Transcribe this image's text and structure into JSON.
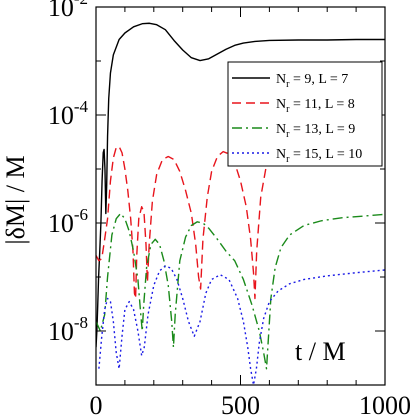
{
  "chart_data": {
    "type": "line",
    "title": "",
    "xlabel": "t / M",
    "ylabel": "|δM| / M",
    "xlim": [
      0,
      1000
    ],
    "ylim": [
      1e-09,
      0.01
    ],
    "yscale": "log",
    "grid": false,
    "legend_position": "top-right",
    "x_ticks": [
      0,
      500,
      1000
    ],
    "x_tick_labels": [
      "0",
      "500",
      "1000"
    ],
    "y_ticks": [
      1e-08,
      1e-06,
      0.0001,
      0.01
    ],
    "y_tick_labels": [
      {
        "mantissa": "10",
        "exponent": "-8"
      },
      {
        "mantissa": "10",
        "exponent": "-6"
      },
      {
        "mantissa": "10",
        "exponent": "-4"
      },
      {
        "mantissa": "10",
        "exponent": "-2"
      }
    ],
    "series": [
      {
        "legend": {
          "base": "N",
          "sub": "r",
          "text": " = 9,  L = 7"
        },
        "color": "#000000",
        "dash": "solid",
        "points": [
          [
            0,
            5e-09
          ],
          [
            3,
            1e-08
          ],
          [
            6,
            3e-08
          ],
          [
            9,
            1e-07
          ],
          [
            13,
            3e-07
          ],
          [
            17,
            1e-06
          ],
          [
            21,
            6e-06
          ],
          [
            25,
            2e-05
          ],
          [
            28,
            2.3e-05
          ],
          [
            31,
            1e-05
          ],
          [
            34,
            1.5e-06
          ],
          [
            37,
            5e-06
          ],
          [
            40,
            4e-05
          ],
          [
            44,
            0.0002
          ],
          [
            50,
            0.0006
          ],
          [
            60,
            0.0013
          ],
          [
            80,
            0.0025
          ],
          [
            100,
            0.0033
          ],
          [
            130,
            0.0043
          ],
          [
            160,
            0.0049
          ],
          [
            185,
            0.005
          ],
          [
            210,
            0.0047
          ],
          [
            240,
            0.0038
          ],
          [
            270,
            0.0024
          ],
          [
            300,
            0.0016
          ],
          [
            330,
            0.00115
          ],
          [
            360,
            0.00102
          ],
          [
            390,
            0.0011
          ],
          [
            420,
            0.00135
          ],
          [
            450,
            0.00165
          ],
          [
            480,
            0.00195
          ],
          [
            510,
            0.00215
          ],
          [
            550,
            0.0023
          ],
          [
            600,
            0.0024
          ],
          [
            700,
            0.00245
          ],
          [
            800,
            0.00245
          ],
          [
            900,
            0.0025
          ],
          [
            1000,
            0.0025
          ]
        ]
      },
      {
        "legend": {
          "base": "N",
          "sub": "r",
          "text": " = 11,  L = 8"
        },
        "color": "#e8141c",
        "dash": "9,5",
        "points": [
          [
            0,
            2.5e-07
          ],
          [
            10,
            2e-07
          ],
          [
            20,
            2.2e-07
          ],
          [
            30,
            5e-07
          ],
          [
            40,
            1.2e-06
          ],
          [
            50,
            6e-06
          ],
          [
            60,
            1.6e-05
          ],
          [
            70,
            2.5e-05
          ],
          [
            80,
            2.6e-05
          ],
          [
            90,
            2e-05
          ],
          [
            100,
            1e-05
          ],
          [
            110,
            4e-06
          ],
          [
            120,
            1.2e-06
          ],
          [
            128,
            3e-07
          ],
          [
            133,
            5e-08
          ],
          [
            137,
            4e-08
          ],
          [
            141,
            2.5e-07
          ],
          [
            148,
            1.2e-06
          ],
          [
            158,
            2e-06
          ],
          [
            166,
            1.6e-06
          ],
          [
            173,
            4e-07
          ],
          [
            178,
            8e-08
          ],
          [
            184,
            4e-07
          ],
          [
            195,
            2.5e-06
          ],
          [
            210,
            8e-06
          ],
          [
            230,
            1.5e-05
          ],
          [
            250,
            1.7e-05
          ],
          [
            270,
            1.5e-05
          ],
          [
            290,
            9e-06
          ],
          [
            310,
            4e-06
          ],
          [
            330,
            1.5e-06
          ],
          [
            345,
            4e-07
          ],
          [
            355,
            1e-07
          ],
          [
            362,
            6e-08
          ],
          [
            370,
            5e-07
          ],
          [
            385,
            3e-06
          ],
          [
            400,
            9e-06
          ],
          [
            420,
            1.7e-05
          ],
          [
            440,
            2.1e-05
          ],
          [
            460,
            1.9e-05
          ],
          [
            480,
            1.3e-05
          ],
          [
            500,
            6e-06
          ],
          [
            520,
            2e-06
          ],
          [
            535,
            5e-07
          ],
          [
            545,
            1.2e-07
          ],
          [
            550,
            4e-08
          ],
          [
            556,
            3e-07
          ],
          [
            570,
            3e-06
          ],
          [
            590,
            1.2e-05
          ],
          [
            620,
            2.1e-05
          ],
          [
            660,
            2.5e-05
          ],
          [
            720,
            2.7e-05
          ],
          [
            800,
            2.8e-05
          ],
          [
            900,
            2.9e-05
          ],
          [
            1000,
            3e-05
          ]
        ]
      },
      {
        "legend": {
          "base": "N",
          "sub": "r",
          "text": " = 13,  L = 9"
        },
        "color": "#1a8a1a",
        "dash": "10,4,2,4",
        "points": [
          [
            0,
            1.5e-08
          ],
          [
            15,
            1e-08
          ],
          [
            30,
            2e-08
          ],
          [
            40,
            1e-07
          ],
          [
            55,
            6e-07
          ],
          [
            70,
            1.2e-06
          ],
          [
            85,
            1.5e-06
          ],
          [
            100,
            1.2e-06
          ],
          [
            115,
            7e-07
          ],
          [
            130,
            3e-07
          ],
          [
            145,
            9e-08
          ],
          [
            155,
            2e-08
          ],
          [
            160,
            1e-08
          ],
          [
            165,
            3e-08
          ],
          [
            175,
            1.5e-07
          ],
          [
            190,
            4e-07
          ],
          [
            205,
            5e-07
          ],
          [
            220,
            4e-07
          ],
          [
            235,
            2e-07
          ],
          [
            250,
            7e-08
          ],
          [
            262,
            1.5e-08
          ],
          [
            268,
            5e-09
          ],
          [
            274,
            2e-08
          ],
          [
            290,
            2e-07
          ],
          [
            310,
            5.5e-07
          ],
          [
            330,
            9e-07
          ],
          [
            350,
            1.05e-06
          ],
          [
            370,
            1e-06
          ],
          [
            390,
            8e-07
          ],
          [
            420,
            5e-07
          ],
          [
            450,
            3e-07
          ],
          [
            480,
            2e-07
          ],
          [
            510,
            9e-08
          ],
          [
            540,
            3e-08
          ],
          [
            565,
            1e-08
          ],
          [
            580,
            4e-09
          ],
          [
            590,
            2e-09
          ],
          [
            597,
            8e-09
          ],
          [
            605,
            4e-08
          ],
          [
            620,
            1.5e-07
          ],
          [
            640,
            3.5e-07
          ],
          [
            670,
            6e-07
          ],
          [
            720,
            9e-07
          ],
          [
            780,
            1.1e-06
          ],
          [
            850,
            1.25e-06
          ],
          [
            930,
            1.35e-06
          ],
          [
            1000,
            1.45e-06
          ]
        ]
      },
      {
        "legend": {
          "base": "N",
          "sub": "r",
          "text": " = 15,  L = 10"
        },
        "color": "#1a1ae6",
        "dash": "2,3",
        "points": [
          [
            10,
            2e-09
          ],
          [
            20,
            8e-09
          ],
          [
            30,
            2.5e-08
          ],
          [
            40,
            4e-08
          ],
          [
            50,
            3.5e-08
          ],
          [
            60,
            1.5e-08
          ],
          [
            70,
            4e-09
          ],
          [
            80,
            2e-09
          ],
          [
            90,
            8e-09
          ],
          [
            100,
            2.5e-08
          ],
          [
            115,
            3.5e-08
          ],
          [
            130,
            2.5e-08
          ],
          [
            145,
            1e-08
          ],
          [
            158,
            3.5e-09
          ],
          [
            167,
            5e-09
          ],
          [
            180,
            2e-08
          ],
          [
            200,
            7e-08
          ],
          [
            220,
            1.3e-07
          ],
          [
            240,
            1.6e-07
          ],
          [
            260,
            1.45e-07
          ],
          [
            280,
            9e-08
          ],
          [
            300,
            4e-08
          ],
          [
            320,
            1.5e-08
          ],
          [
            340,
            8e-09
          ],
          [
            360,
            1.5e-08
          ],
          [
            380,
            5e-08
          ],
          [
            400,
            9e-08
          ],
          [
            430,
            1.1e-07
          ],
          [
            460,
            9e-08
          ],
          [
            490,
            4e-08
          ],
          [
            510,
            1.5e-08
          ],
          [
            525,
            5e-09
          ],
          [
            535,
            2e-09
          ],
          [
            545,
            1e-09
          ],
          [
            555,
            2e-09
          ],
          [
            565,
            6e-09
          ],
          [
            580,
            1.7e-08
          ],
          [
            600,
            3.5e-08
          ],
          [
            630,
            5.5e-08
          ],
          [
            670,
            7.5e-08
          ],
          [
            720,
            9e-08
          ],
          [
            800,
            1.05e-07
          ],
          [
            900,
            1.2e-07
          ],
          [
            1000,
            1.35e-07
          ]
        ]
      }
    ]
  }
}
